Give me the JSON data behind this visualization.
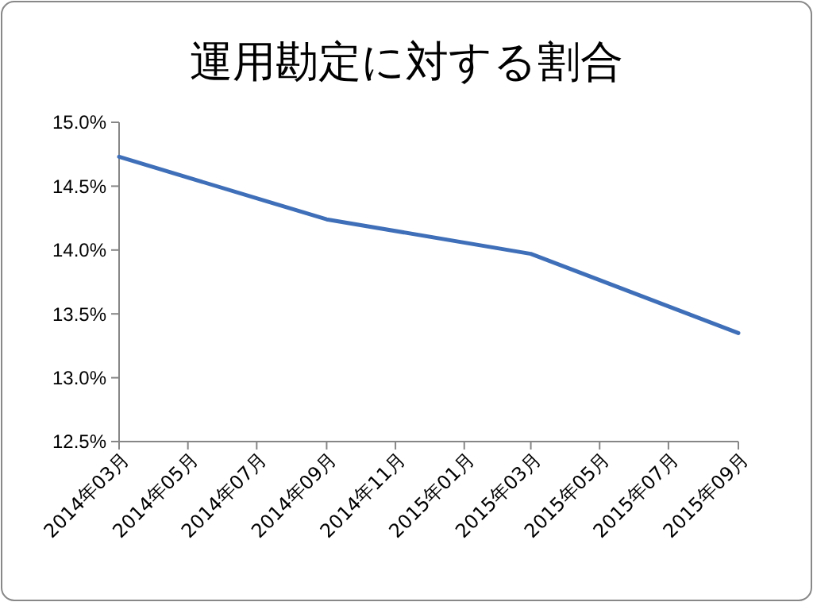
{
  "chart_data": {
    "type": "line",
    "title": "運用勘定に対する割合",
    "x": [
      "2014-03",
      "2014-09",
      "2015-03",
      "2015-09"
    ],
    "series": [
      {
        "color": "#3f6fb8",
        "values": [
          14.73,
          14.24,
          13.97,
          13.35
        ]
      }
    ],
    "xlim": [
      "2014-03",
      "2015-09"
    ],
    "xticks": [
      {
        "value": "2014-03",
        "label": "2014年03月"
      },
      {
        "value": "2014-05",
        "label": "2014年05月"
      },
      {
        "value": "2014-07",
        "label": "2014年07月"
      },
      {
        "value": "2014-09",
        "label": "2014年09月"
      },
      {
        "value": "2014-11",
        "label": "2014年11月"
      },
      {
        "value": "2015-01",
        "label": "2015年01月"
      },
      {
        "value": "2015-03",
        "label": "2015年03月"
      },
      {
        "value": "2015-05",
        "label": "2015年05月"
      },
      {
        "value": "2015-07",
        "label": "2015年07月"
      },
      {
        "value": "2015-09",
        "label": "2015年09月"
      }
    ],
    "ylim": [
      12.5,
      15
    ],
    "yticks": [
      {
        "value": 12.5,
        "label": "12.5%"
      },
      {
        "value": 13,
        "label": "13.0%"
      },
      {
        "value": 13.5,
        "label": "13.5%"
      },
      {
        "value": 14,
        "label": "14.0%"
      },
      {
        "value": 14.5,
        "label": "14.5%"
      },
      {
        "value": 15,
        "label": "15.0%"
      }
    ],
    "marker": "none",
    "line_style": "solid",
    "grid": false
  }
}
